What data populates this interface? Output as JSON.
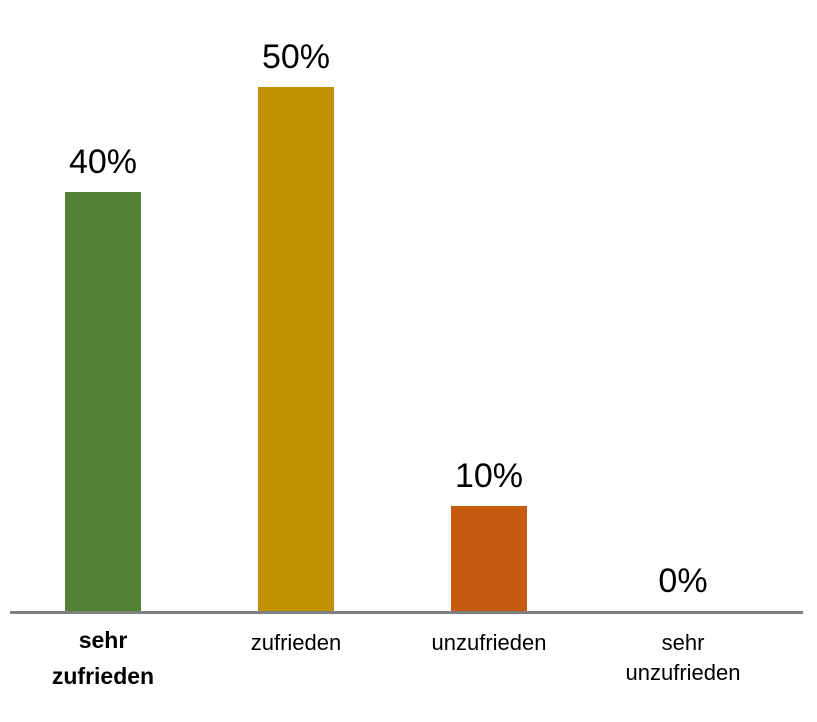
{
  "chart_data": {
    "type": "bar",
    "categories": [
      "sehr zufrieden",
      "zufrieden",
      "unzufrieden",
      "sehr unzufrieden"
    ],
    "values": [
      40,
      50,
      10,
      0
    ],
    "value_labels": [
      "40%",
      "50%",
      "10%",
      "0%"
    ],
    "colors": [
      "#548235",
      "#bf9000",
      "#c55a11",
      "#7f7f7f"
    ]
  }
}
